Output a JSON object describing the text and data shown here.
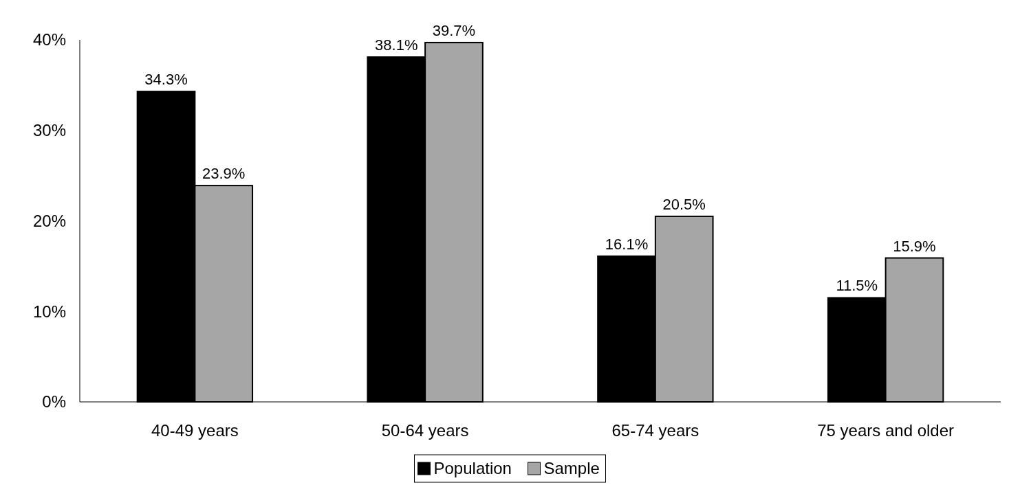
{
  "chart_data": {
    "type": "bar",
    "categories": [
      "40-49 years",
      "50-64 years",
      "65-74 years",
      "75 years and older"
    ],
    "series": [
      {
        "name": "Population",
        "color": "#000000",
        "values": [
          34.3,
          38.1,
          16.1,
          11.5
        ],
        "value_labels": [
          "34.3%",
          "38.1%",
          "16.1%",
          "11.5%"
        ]
      },
      {
        "name": "Sample",
        "color": "#a6a6a6",
        "values": [
          23.9,
          39.7,
          20.5,
          15.9
        ],
        "value_labels": [
          "23.9%",
          "39.7%",
          "20.5%",
          "15.9%"
        ]
      }
    ],
    "ylim": [
      0,
      40
    ],
    "yticks": [
      {
        "value": 0,
        "label": "0%"
      },
      {
        "value": 10,
        "label": "10%"
      },
      {
        "value": 20,
        "label": "20%"
      },
      {
        "value": 30,
        "label": "30%"
      },
      {
        "value": 40,
        "label": "40%"
      }
    ],
    "grid": false,
    "legend": "bottom"
  }
}
